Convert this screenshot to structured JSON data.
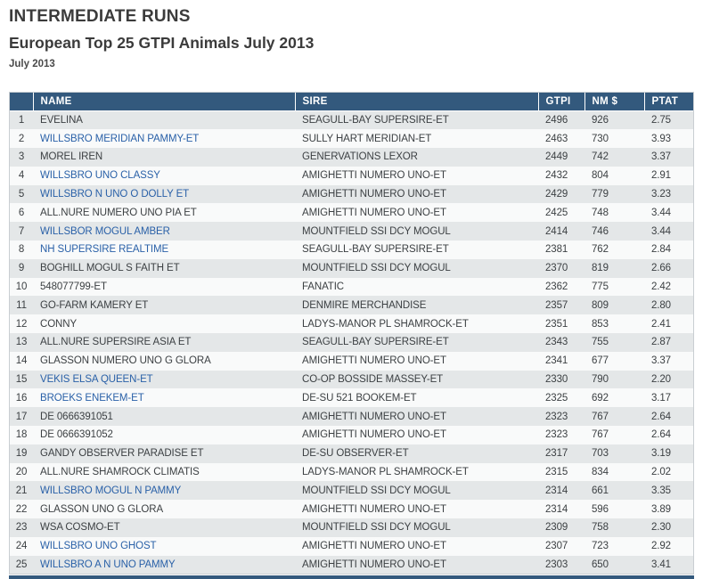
{
  "page": {
    "section_title": "INTERMEDIATE RUNS",
    "article_title": "European Top 25 GTPI Animals July 2013",
    "date_label": "July 2013"
  },
  "colors": {
    "header_bg": "#33597d",
    "link_blue": "#2a61a8",
    "row_odd": "#e4e7e8",
    "row_even": "#f9fafa"
  },
  "table": {
    "columns": {
      "rank": "",
      "name": "NAME",
      "sire": "SIRE",
      "gtpi": "GTPI",
      "nm": "NM $",
      "ptat": "PTAT"
    },
    "rows": [
      {
        "rank": "1",
        "name": "EVELINA",
        "link": false,
        "sire": "SEAGULL-BAY SUPERSIRE-ET",
        "gtpi": "2496",
        "nm": "926",
        "ptat": "2.75"
      },
      {
        "rank": "2",
        "name": "WILLSBRO MERIDIAN PAMMY-ET",
        "link": true,
        "sire": "SULLY HART MERIDIAN-ET",
        "gtpi": "2463",
        "nm": "730",
        "ptat": "3.93"
      },
      {
        "rank": "3",
        "name": "MOREL IREN",
        "link": false,
        "sire": "GENERVATIONS LEXOR",
        "gtpi": "2449",
        "nm": "742",
        "ptat": "3.37"
      },
      {
        "rank": "4",
        "name": "WILLSBRO UNO CLASSY",
        "link": true,
        "sire": "AMIGHETTI NUMERO UNO-ET",
        "gtpi": "2432",
        "nm": "804",
        "ptat": "2.91"
      },
      {
        "rank": "5",
        "name": "WILLSBRO N UNO O DOLLY ET",
        "link": true,
        "sire": "AMIGHETTI NUMERO UNO-ET",
        "gtpi": "2429",
        "nm": "779",
        "ptat": "3.23"
      },
      {
        "rank": "6",
        "name": "ALL.NURE NUMERO UNO PIA ET",
        "link": false,
        "sire": "AMIGHETTI NUMERO UNO-ET",
        "gtpi": "2425",
        "nm": "748",
        "ptat": "3.44"
      },
      {
        "rank": "7",
        "name": "WILLSBOR MOGUL AMBER",
        "link": true,
        "sire": "MOUNTFIELD SSI DCY MOGUL",
        "gtpi": "2414",
        "nm": "746",
        "ptat": "3.44"
      },
      {
        "rank": "8",
        "name": "NH SUPERSIRE REALTIME",
        "link": true,
        "sire": "SEAGULL-BAY SUPERSIRE-ET",
        "gtpi": "2381",
        "nm": "762",
        "ptat": "2.84"
      },
      {
        "rank": "9",
        "name": "BOGHILL MOGUL S FAITH ET",
        "link": false,
        "sire": "MOUNTFIELD SSI DCY MOGUL",
        "gtpi": "2370",
        "nm": "819",
        "ptat": "2.66"
      },
      {
        "rank": "10",
        "name": "548077799-ET",
        "link": false,
        "sire": "FANATIC",
        "gtpi": "2362",
        "nm": "775",
        "ptat": "2.42"
      },
      {
        "rank": "11",
        "name": "GO-FARM KAMERY ET",
        "link": false,
        "sire": "DENMIRE MERCHANDISE",
        "gtpi": "2357",
        "nm": "809",
        "ptat": "2.80"
      },
      {
        "rank": "12",
        "name": "CONNY",
        "link": false,
        "sire": "LADYS-MANOR PL SHAMROCK-ET",
        "gtpi": "2351",
        "nm": "853",
        "ptat": "2.41"
      },
      {
        "rank": "13",
        "name": "ALL.NURE SUPERSIRE ASIA ET",
        "link": false,
        "sire": "SEAGULL-BAY SUPERSIRE-ET",
        "gtpi": "2343",
        "nm": "755",
        "ptat": "2.87"
      },
      {
        "rank": "14",
        "name": "GLASSON NUMERO UNO G GLORA",
        "link": false,
        "sire": "AMIGHETTI NUMERO UNO-ET",
        "gtpi": "2341",
        "nm": "677",
        "ptat": "3.37"
      },
      {
        "rank": "15",
        "name": "VEKIS ELSA QUEEN-ET",
        "link": true,
        "sire": "CO-OP BOSSIDE MASSEY-ET",
        "gtpi": "2330",
        "nm": "790",
        "ptat": "2.20"
      },
      {
        "rank": "16",
        "name": "BROEKS ENEKEM-ET",
        "link": true,
        "sire": "DE-SU 521 BOOKEM-ET",
        "gtpi": "2325",
        "nm": "692",
        "ptat": "3.17"
      },
      {
        "rank": "17",
        "name": "DE 0666391051",
        "link": false,
        "sire": "AMIGHETTI NUMERO UNO-ET",
        "gtpi": "2323",
        "nm": "767",
        "ptat": "2.64"
      },
      {
        "rank": "18",
        "name": "DE 0666391052",
        "link": false,
        "sire": "AMIGHETTI NUMERO UNO-ET",
        "gtpi": "2323",
        "nm": "767",
        "ptat": "2.64"
      },
      {
        "rank": "19",
        "name": "GANDY OBSERVER PARADISE ET",
        "link": false,
        "sire": "DE-SU OBSERVER-ET",
        "gtpi": "2317",
        "nm": "703",
        "ptat": "3.19"
      },
      {
        "rank": "20",
        "name": "ALL.NURE SHAMROCK CLIMATIS",
        "link": false,
        "sire": "LADYS-MANOR PL SHAMROCK-ET",
        "gtpi": "2315",
        "nm": "834",
        "ptat": "2.02"
      },
      {
        "rank": "21",
        "name": "WILLSBRO MOGUL N PAMMY",
        "link": true,
        "sire": "MOUNTFIELD SSI DCY MOGUL",
        "gtpi": "2314",
        "nm": "661",
        "ptat": "3.35"
      },
      {
        "rank": "22",
        "name": "GLASSON UNO G GLORA",
        "link": false,
        "sire": "AMIGHETTI NUMERO UNO-ET",
        "gtpi": "2314",
        "nm": "596",
        "ptat": "3.89"
      },
      {
        "rank": "23",
        "name": "WSA COSMO-ET",
        "link": false,
        "sire": "MOUNTFIELD SSI DCY MOGUL",
        "gtpi": "2309",
        "nm": "758",
        "ptat": "2.30"
      },
      {
        "rank": "24",
        "name": "WILLSBRO UNO GHOST",
        "link": true,
        "sire": "AMIGHETTI NUMERO UNO-ET",
        "gtpi": "2307",
        "nm": "723",
        "ptat": "2.92"
      },
      {
        "rank": "25",
        "name": "WILLSBRO A N UNO PAMMY",
        "link": true,
        "sire": "AMIGHETTI NUMERO UNO-ET",
        "gtpi": "2303",
        "nm": "650",
        "ptat": "3.41"
      }
    ]
  }
}
